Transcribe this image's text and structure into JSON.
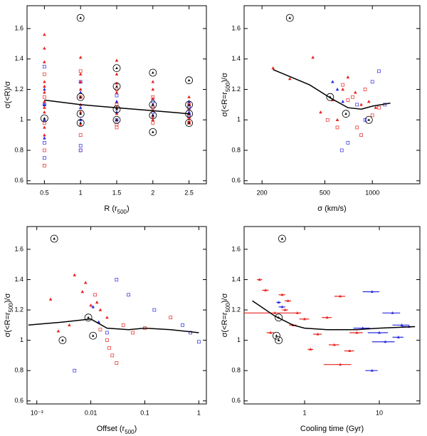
{
  "chart_data": [
    {
      "type": "scatter",
      "xlabel": [
        "R (r",
        "500",
        ")"
      ],
      "ylabel": [
        "σ(<R)/σ"
      ],
      "xlog": false,
      "xlim": [
        0.26,
        2.74
      ],
      "xticks": [
        0.5,
        1,
        1.5,
        2,
        2.5
      ],
      "ylim": [
        0.58,
        1.75
      ],
      "yticks": [
        0.6,
        0.8,
        1,
        1.2,
        1.4,
        1.6
      ],
      "series": [
        {
          "marker": "triangle",
          "color": "#e8231f",
          "x": [
            0.5,
            0.5,
            0.5,
            0.5,
            0.5,
            0.5,
            0.5,
            0.5,
            0.5,
            0.5,
            0.5,
            0.5,
            1,
            1,
            1,
            1,
            1,
            1,
            1,
            1,
            1,
            1.5,
            1.5,
            1.5,
            1.5,
            1.5,
            1.5,
            1.5,
            1.5,
            2,
            2,
            2,
            2,
            2,
            2,
            2,
            2.5,
            2.5,
            2.5,
            2.5,
            2.5,
            2.5
          ],
          "values": [
            1.56,
            1.47,
            1.38,
            1.25,
            1.22,
            1.18,
            1.12,
            1.08,
            1.05,
            1.0,
            0.95,
            0.9,
            1.41,
            1.3,
            1.25,
            1.2,
            1.15,
            1.1,
            1.05,
            1.0,
            0.97,
            1.39,
            1.3,
            1.24,
            1.18,
            1.12,
            1.08,
            1.04,
            1.0,
            1.25,
            1.2,
            1.14,
            1.1,
            1.06,
            1.02,
            1.0,
            1.15,
            1.1,
            1.07,
            1.04,
            1.01,
            0.99
          ]
        },
        {
          "marker": "triangle",
          "color": "#2a2ae0",
          "x": [
            0.5,
            0.5,
            0.5,
            0.5,
            1,
            1,
            1,
            1.5,
            1.5,
            2,
            2,
            2.5,
            2.5
          ],
          "values": [
            1.2,
            1.1,
            1.0,
            0.88,
            1.18,
            1.08,
            1.0,
            1.12,
            1.05,
            1.1,
            1.03,
            1.12,
            1.05
          ]
        },
        {
          "marker": "square",
          "color": "#e8231f",
          "x": [
            0.5,
            0.5,
            0.5,
            0.5,
            0.5,
            1,
            1,
            1,
            1,
            1.5,
            1.5,
            1.5,
            1.5,
            2,
            2,
            2,
            2.5,
            2.5,
            2.5
          ],
          "values": [
            1.3,
            1.15,
            0.98,
            0.8,
            0.7,
            1.32,
            1.15,
            0.9,
            0.8,
            1.2,
            1.1,
            0.97,
            0.95,
            1.15,
            1.08,
            0.98,
            1.1,
            1.02,
            0.98
          ]
        },
        {
          "marker": "square",
          "color": "#2a2ae0",
          "x": [
            0.5,
            0.5,
            0.5,
            0.5,
            1,
            1,
            1,
            1.5,
            1.5,
            2,
            2,
            2.5,
            2.5
          ],
          "values": [
            1.35,
            1.1,
            0.85,
            0.75,
            1.25,
            0.83,
            0.8,
            1.16,
            1.0,
            1.12,
            1.05,
            1.08,
            1.03
          ]
        },
        {
          "marker": "circle",
          "color": "#000000",
          "x": [
            1,
            1,
            1,
            1,
            0.5,
            1.5,
            1.5,
            1.5,
            1.5,
            2,
            2,
            2,
            2,
            2.5,
            2.5,
            2.5,
            2.5
          ],
          "values": [
            1.67,
            1.15,
            1.04,
            0.98,
            1.01,
            1.34,
            1.22,
            1.07,
            1.0,
            1.31,
            1.1,
            1.03,
            0.92,
            1.26,
            1.1,
            1.04,
            0.98
          ]
        },
        {
          "marker": "line",
          "color": "#000000",
          "x": [
            0.5,
            1,
            1.5,
            2,
            2.5
          ],
          "values": [
            1.13,
            1.1,
            1.08,
            1.06,
            1.04
          ]
        }
      ]
    },
    {
      "type": "scatter",
      "xlabel": [
        "σ (km/s)"
      ],
      "ylabel": [
        "σ(<R=r",
        "500",
        ")/σ"
      ],
      "xlog": true,
      "xlim": [
        154,
        2000
      ],
      "xticks": [
        200,
        500,
        1000
      ],
      "ylim": [
        0.58,
        1.75
      ],
      "yticks": [
        0.6,
        0.8,
        1,
        1.2,
        1.4,
        1.6
      ],
      "series": [
        {
          "marker": "triangle",
          "color": "#e8231f",
          "x": [
            235,
            300,
            420,
            470,
            560,
            600,
            700,
            780,
            850,
            950,
            1050,
            650
          ],
          "values": [
            1.34,
            1.27,
            1.41,
            1.05,
            1.13,
            1.0,
            1.28,
            1.18,
            1.1,
            1.12,
            1.08,
            1.2
          ]
        },
        {
          "marker": "triangle",
          "color": "#2a2ae0",
          "x": [
            560,
            600,
            650
          ],
          "values": [
            1.25,
            1.2,
            1.12
          ]
        },
        {
          "marker": "square",
          "color": "#e8231f",
          "x": [
            520,
            600,
            650,
            700,
            750,
            800,
            850,
            900,
            1000,
            1100
          ],
          "values": [
            1.0,
            0.95,
            1.23,
            1.13,
            1.15,
            0.95,
            0.9,
            1.2,
            1.03,
            1.08
          ]
        },
        {
          "marker": "square",
          "color": "#2a2ae0",
          "x": [
            640,
            700,
            800,
            900,
            1000,
            1100,
            1200
          ],
          "values": [
            0.8,
            0.85,
            1.1,
            1.0,
            1.25,
            1.32,
            1.1
          ]
        },
        {
          "marker": "circle",
          "color": "#000000",
          "x": [
            300,
            540,
            680,
            950
          ],
          "values": [
            1.67,
            1.15,
            1.04,
            1.0
          ]
        },
        {
          "marker": "line",
          "color": "#000000",
          "x": [
            235,
            400,
            550,
            700,
            850,
            1000,
            1300
          ],
          "values": [
            1.33,
            1.23,
            1.14,
            1.08,
            1.07,
            1.09,
            1.11
          ]
        }
      ]
    },
    {
      "type": "scatter",
      "xlabel": [
        "Offset (r",
        "500",
        ")"
      ],
      "ylabel": [
        "σ(<R=r",
        "500",
        ")/σ"
      ],
      "xlog": true,
      "xlim": [
        0.00066,
        1.38
      ],
      "xticks": [
        {
          "value": 0.001,
          "label": "10⁻³"
        },
        0.01,
        0.1,
        1
      ],
      "ylim": [
        0.58,
        1.75
      ],
      "yticks": [
        0.6,
        0.8,
        1,
        1.2,
        1.4,
        1.6
      ],
      "series": [
        {
          "marker": "triangle",
          "color": "#e8231f",
          "x": [
            0.0018,
            0.005,
            0.007,
            0.008,
            0.01,
            0.013,
            0.015,
            0.0025,
            0.02,
            0.004
          ],
          "values": [
            1.27,
            1.43,
            1.32,
            1.38,
            1.23,
            1.25,
            1.2,
            1.06,
            1.15,
            1.1
          ]
        },
        {
          "marker": "triangle",
          "color": "#2a2ae0",
          "x": [
            0.011,
            0.014
          ],
          "values": [
            1.22,
            1.12
          ]
        },
        {
          "marker": "square",
          "color": "#e8231f",
          "x": [
            0.02,
            0.022,
            0.025,
            0.03,
            0.015,
            0.04,
            0.06,
            0.1,
            0.012,
            0.3
          ],
          "values": [
            1.0,
            0.95,
            0.9,
            0.85,
            1.07,
            1.1,
            1.05,
            1.08,
            1.3,
            1.15
          ]
        },
        {
          "marker": "square",
          "color": "#2a2ae0",
          "x": [
            0.005,
            0.03,
            0.05,
            0.15,
            0.5,
            0.7,
            1.0,
            0.02
          ],
          "values": [
            0.8,
            1.4,
            1.3,
            1.2,
            1.1,
            1.05,
            0.99,
            1.05
          ]
        },
        {
          "marker": "circle",
          "color": "#000000",
          "x": [
            0.0021,
            0.003,
            0.009,
            0.011
          ],
          "values": [
            1.67,
            1.0,
            1.15,
            1.03
          ]
        },
        {
          "marker": "line",
          "color": "#000000",
          "x": [
            0.0007,
            0.003,
            0.01,
            0.02,
            0.05,
            0.1,
            0.3,
            1
          ],
          "values": [
            1.1,
            1.12,
            1.14,
            1.08,
            1.07,
            1.08,
            1.07,
            1.05
          ]
        }
      ]
    },
    {
      "type": "scatter",
      "xlabel": [
        "Cooling time (Gyr)"
      ],
      "ylabel": [
        "σ(<R=r",
        "500",
        ")/σ"
      ],
      "xlog": true,
      "xlim": [
        0.155,
        34.9
      ],
      "xticks": [
        1,
        10
      ],
      "ylim": [
        0.58,
        1.75
      ],
      "yticks": [
        0.6,
        0.8,
        1,
        1.2,
        1.4,
        1.6
      ],
      "series": [
        {
          "marker": "errorbar",
          "color": "#e8231f",
          "x": [
            0.25,
            0.3,
            0.5,
            0.6,
            0.55,
            0.8,
            1.0,
            2.0,
            3,
            1.5,
            1.2,
            2.5,
            4,
            3,
            0.35,
            0.7,
            0.4,
            5
          ],
          "xerr": [
            0.02,
            0.03,
            0.05,
            0.06,
            0.05,
            0.1,
            0.15,
            0.3,
            0.5,
            0.2,
            0.1,
            0.4,
            0.6,
            1.2,
            0.04,
            0.08,
            0.3,
            1
          ],
          "values": [
            1.4,
            1.33,
            1.3,
            1.26,
            1.2,
            1.18,
            1.14,
            1.15,
            1.29,
            1.04,
            0.94,
            0.97,
            0.93,
            0.84,
            1.05,
            1.1,
            1.18,
            1.05
          ]
        },
        {
          "marker": "errorbar",
          "color": "#2a2ae0",
          "x": [
            0.45,
            0.5,
            8,
            15,
            20,
            10,
            12,
            8,
            6,
            25,
            18
          ],
          "xerr": [
            0.03,
            0.05,
            2,
            4,
            5,
            3,
            4,
            1.5,
            1.5,
            5,
            3
          ],
          "values": [
            1.25,
            1.22,
            1.32,
            1.18,
            1.1,
            1.05,
            0.99,
            0.8,
            1.08,
            1.09,
            1.02
          ]
        },
        {
          "marker": "circle",
          "color": "#000000",
          "x": [
            0.5,
            0.45,
            0.42,
            0.45
          ],
          "values": [
            1.67,
            1.15,
            1.03,
            1.0
          ]
        },
        {
          "marker": "line",
          "color": "#000000",
          "x": [
            0.2,
            0.4,
            0.7,
            1,
            2,
            5,
            10,
            30
          ],
          "values": [
            1.26,
            1.16,
            1.1,
            1.08,
            1.07,
            1.07,
            1.08,
            1.09
          ]
        }
      ]
    }
  ]
}
